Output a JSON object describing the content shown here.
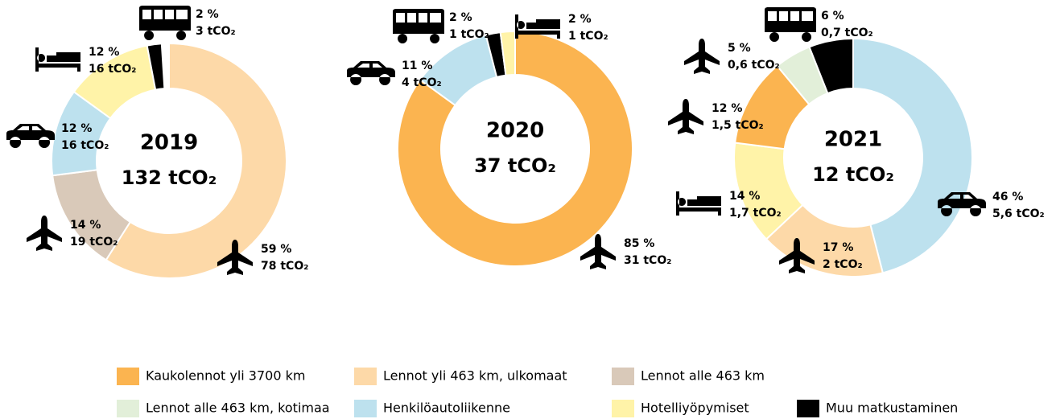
{
  "chart_data": [
    {
      "type": "pie",
      "title": "2019",
      "subtitle": "132 tCO₂",
      "categories": [
        "Lennot yli 463 km, ulkomaat",
        "Lennot alle 463 km",
        "Henkilöautoliikenne",
        "Hotelliyöpymiset",
        "Muu matkustaminen"
      ],
      "values": [
        59,
        14,
        12,
        12,
        2
      ],
      "value_labels": [
        "59 %",
        "14 %",
        "12 %",
        "12 %",
        "2 %"
      ],
      "emission_labels": [
        "78 tCO₂",
        "19 tCO₂",
        "16 tCO₂",
        "16 tCO₂",
        "3 tCO₂"
      ]
    },
    {
      "type": "pie",
      "title": "2020",
      "subtitle": "37 tCO₂",
      "categories": [
        "Kaukolennot yli 3700 km",
        "Henkilöautoliikenne",
        "Muu matkustaminen",
        "Hotelliyöpymiset"
      ],
      "values": [
        85,
        11,
        2,
        2
      ],
      "value_labels": [
        "85 %",
        "11 %",
        "2 %",
        "2 %"
      ],
      "emission_labels": [
        "31 tCO₂",
        "4 tCO₂",
        "1 tCO₂",
        "1 tCO₂"
      ]
    },
    {
      "type": "pie",
      "title": "2021",
      "subtitle": "12 tCO₂",
      "categories": [
        "Henkilöautoliikenne",
        "Lennot yli 463 km, ulkomaat",
        "Hotelliyöpymiset",
        "Kaukolennot yli 3700 km",
        "Lennot alle 463 km, kotimaa",
        "Muu matkustaminen"
      ],
      "values": [
        46,
        17,
        14,
        12,
        5,
        6
      ],
      "value_labels": [
        "46 %",
        "17 %",
        "14 %",
        "12 %",
        "5 %",
        "6 %"
      ],
      "emission_labels": [
        "5,6 tCO₂",
        "2 tCO₂",
        "1,7 tCO₂",
        "1,5 tCO₂",
        "0,6 tCO₂",
        "0,7 tCO₂"
      ]
    }
  ],
  "legend": [
    {
      "name": "Kaukolennot yli 3700 km",
      "color": "#fbb450"
    },
    {
      "name": "Lennot yli 463 km, ulkomaat",
      "color": "#fdd9a8"
    },
    {
      "name": "Lennot alle 463 km",
      "color": "#d9c9b9"
    },
    {
      "name": "Lennot alle 463 km, kotimaa",
      "color": "#e2efd9"
    },
    {
      "name": "Henkilöautoliikenne",
      "color": "#bde1ee"
    },
    {
      "name": "Hotelliyöpymiset",
      "color": "#fff3a8"
    },
    {
      "name": "Muu matkustaminen",
      "color": "#000000"
    }
  ]
}
